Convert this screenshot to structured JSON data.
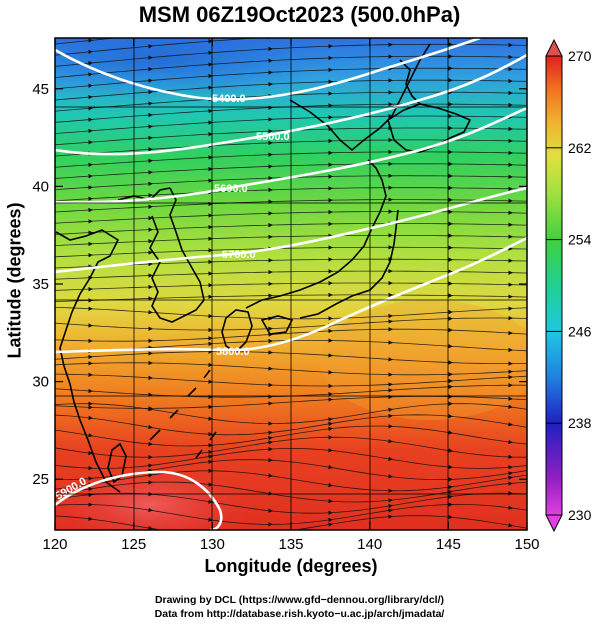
{
  "title": "MSM 06Z19Oct2023 (500.0hPa)",
  "x_axis": {
    "label": "Longitude (degrees)",
    "min": 120,
    "max": 150,
    "ticks": [
      "120",
      "125",
      "130",
      "135",
      "140",
      "145",
      "150"
    ]
  },
  "y_axis": {
    "label": "Latitude  (degrees)",
    "min": 22.4,
    "max": 47.6,
    "ticks": [
      "25",
      "30",
      "35",
      "40",
      "45"
    ]
  },
  "colorbar": {
    "min": 230,
    "max": 270,
    "ticks": [
      "230",
      "238",
      "246",
      "254",
      "262",
      "270"
    ],
    "colors": [
      "#e040e0",
      "#9020c0",
      "#2020c0",
      "#2080e0",
      "#20c8e0",
      "#20d090",
      "#40d040",
      "#a0e040",
      "#e0e040",
      "#f0b030",
      "#f07020",
      "#e02020",
      "#e05050"
    ]
  },
  "contours": [
    {
      "label": "5400.0"
    },
    {
      "label": "5500.0"
    },
    {
      "label": "5600.0"
    },
    {
      "label": "5700.0"
    },
    {
      "label": "5800.0"
    },
    {
      "label": "5900.0"
    }
  ],
  "credits": {
    "line1": "Drawing by DCL (https://www.gfd−dennou.org/library/dcl/)",
    "line2": "Data from http://database.rish.kyoto−u.ac.jp/arch/jmadata/"
  }
}
